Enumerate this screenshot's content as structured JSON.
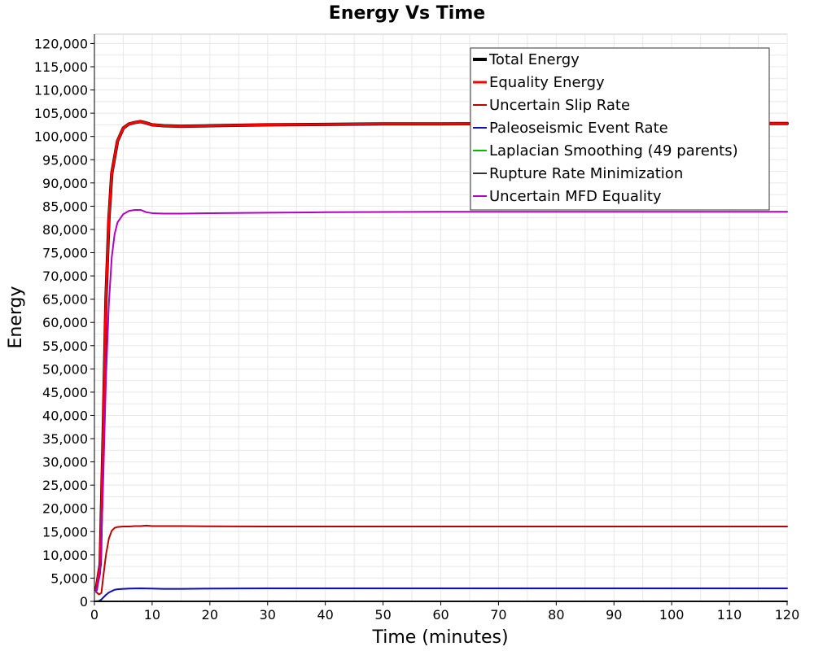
{
  "chart_data": {
    "type": "line",
    "title": "Energy Vs Time",
    "xlabel": "Time (minutes)",
    "ylabel": "Energy",
    "xlim": [
      0,
      120
    ],
    "ylim": [
      0,
      122000
    ],
    "xticks": [
      0,
      10,
      20,
      30,
      40,
      50,
      60,
      70,
      80,
      90,
      100,
      110,
      120
    ],
    "xtick_labels": [
      "0",
      "10",
      "20",
      "30",
      "40",
      "50",
      "60",
      "70",
      "80",
      "90",
      "100",
      "110",
      "120"
    ],
    "yticks": [
      0,
      5000,
      10000,
      15000,
      20000,
      25000,
      30000,
      35000,
      40000,
      45000,
      50000,
      55000,
      60000,
      65000,
      70000,
      75000,
      80000,
      85000,
      90000,
      95000,
      100000,
      105000,
      110000,
      115000,
      120000
    ],
    "ytick_labels": [
      "0",
      "5,000",
      "10,000",
      "15,000",
      "20,000",
      "25,000",
      "30,000",
      "35,000",
      "40,000",
      "45,000",
      "50,000",
      "55,000",
      "60,000",
      "65,000",
      "70,000",
      "75,000",
      "80,000",
      "85,000",
      "90,000",
      "95,000",
      "100,000",
      "105,000",
      "110,000",
      "115,000",
      "120,000"
    ],
    "grid": true,
    "legend_position": "top-right",
    "series": [
      {
        "name": "Total Energy",
        "color": "#000000",
        "width": 4,
        "x": [
          0.3,
          1,
          1.5,
          2,
          2.5,
          3,
          4,
          5,
          6,
          7,
          8,
          9,
          10,
          12,
          15,
          20,
          30,
          40,
          50,
          60,
          80,
          100,
          120
        ],
        "y": [
          2500,
          8000,
          35000,
          65000,
          82000,
          92000,
          99000,
          101800,
          102700,
          103000,
          103200,
          102900,
          102500,
          102300,
          102200,
          102300,
          102500,
          102600,
          102700,
          102700,
          102800,
          102800,
          102800
        ]
      },
      {
        "name": "Equality Energy",
        "color": "#ff0000",
        "width": 3,
        "x": [
          0.3,
          1,
          1.5,
          2,
          2.5,
          3,
          4,
          5,
          6,
          7,
          8,
          9,
          10,
          12,
          15,
          20,
          30,
          40,
          50,
          60,
          80,
          100,
          120
        ],
        "y": [
          2500,
          8000,
          35000,
          65000,
          82000,
          92000,
          99000,
          101800,
          102700,
          103000,
          103200,
          102900,
          102500,
          102300,
          102200,
          102300,
          102500,
          102600,
          102700,
          102700,
          102800,
          102800,
          102800
        ]
      },
      {
        "name": "Uncertain Slip Rate",
        "color": "#bb0000",
        "width": 2,
        "x": [
          0.3,
          0.8,
          1.2,
          1.6,
          2,
          2.5,
          3,
          3.5,
          4,
          5,
          6,
          7,
          8,
          9,
          10,
          12,
          15,
          20,
          30,
          40,
          60,
          80,
          100,
          120
        ],
        "y": [
          2000,
          1500,
          1800,
          6000,
          10000,
          13500,
          15200,
          15800,
          16000,
          16100,
          16100,
          16200,
          16200,
          16300,
          16200,
          16200,
          16200,
          16150,
          16100,
          16100,
          16100,
          16100,
          16100,
          16100
        ]
      },
      {
        "name": "Paleoseismic Event Rate",
        "color": "#1010b0",
        "width": 2,
        "x": [
          0.2,
          0.8,
          1.2,
          1.6,
          2,
          2.5,
          3,
          3.5,
          4,
          5,
          6,
          8,
          10,
          12,
          15,
          20,
          30,
          40,
          60,
          80,
          100,
          120
        ],
        "y": [
          0,
          100,
          400,
          900,
          1400,
          1900,
          2200,
          2500,
          2600,
          2700,
          2750,
          2800,
          2750,
          2700,
          2700,
          2750,
          2800,
          2800,
          2800,
          2800,
          2800,
          2800
        ]
      },
      {
        "name": "Laplacian Smoothing (49 parents)",
        "color": "#00bb00",
        "width": 2,
        "x": [
          0,
          120
        ],
        "y": [
          0,
          0
        ]
      },
      {
        "name": "Rupture Rate Minimization",
        "color": "#333333",
        "width": 2,
        "x": [
          0,
          120
        ],
        "y": [
          0,
          0
        ]
      },
      {
        "name": "Uncertain MFD Equality",
        "color": "#b000c0",
        "width": 2,
        "x": [
          0.3,
          1,
          1.5,
          2,
          2.5,
          3,
          3.5,
          4,
          5,
          6,
          7,
          8,
          9,
          10,
          12,
          15,
          20,
          30,
          40,
          60,
          80,
          100,
          120
        ],
        "y": [
          2000,
          6000,
          25000,
          48000,
          64000,
          74000,
          79000,
          81500,
          83300,
          84000,
          84200,
          84200,
          83700,
          83500,
          83400,
          83400,
          83500,
          83600,
          83700,
          83800,
          83800,
          83800,
          83800
        ]
      }
    ]
  }
}
